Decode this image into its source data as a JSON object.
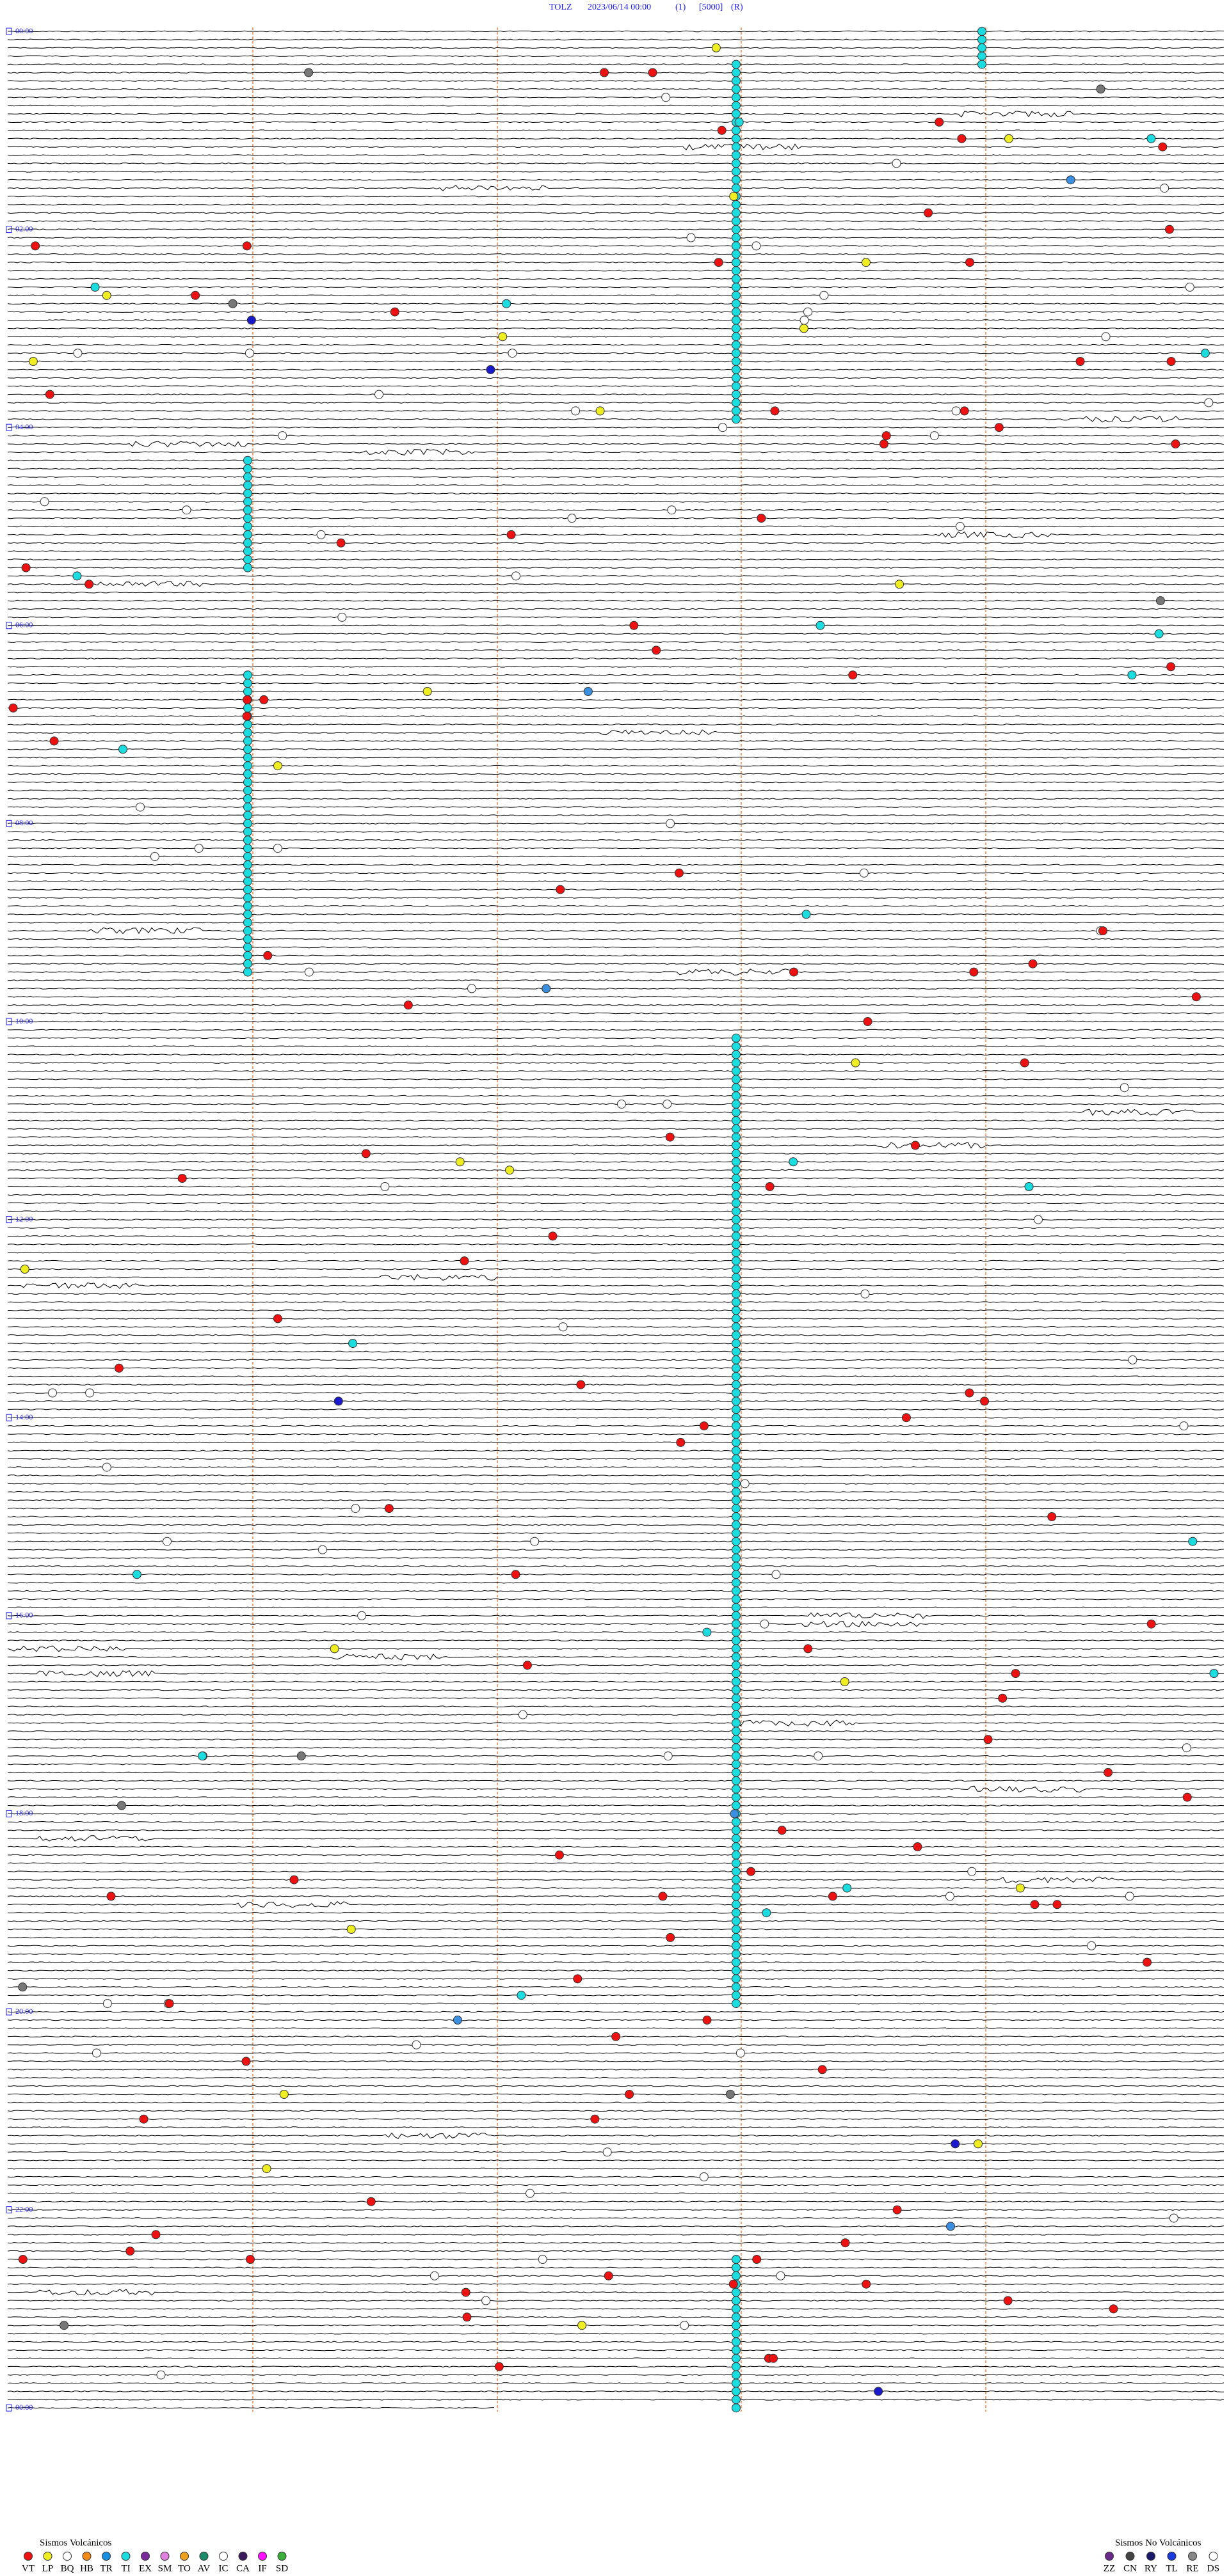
{
  "header": {
    "station": "TOLZ",
    "datetime": "2023/06/14 00:00",
    "channel": "(1)",
    "scale": "[5000]",
    "mode": "(R)"
  },
  "time_labels": [
    "00:00",
    "02:00",
    "04:00",
    "06:00",
    "08:00",
    "10:00",
    "12:00",
    "14:00",
    "16:00",
    "18:00",
    "20:00",
    "22:00",
    "00:00"
  ],
  "legend": {
    "volcanic": {
      "title": "Sismos Volcánicos",
      "codes": [
        "VT",
        "LP",
        "BQ",
        "HB",
        "TR",
        "TI",
        "EX",
        "SM",
        "TO",
        "AV",
        "IC",
        "CA",
        "IF",
        "SD"
      ]
    },
    "non_volcanic": {
      "title": "Sismos No Volcánicos",
      "codes": [
        "ZZ",
        "CN",
        "RY",
        "TL",
        "RE",
        "DS"
      ]
    }
  }
}
